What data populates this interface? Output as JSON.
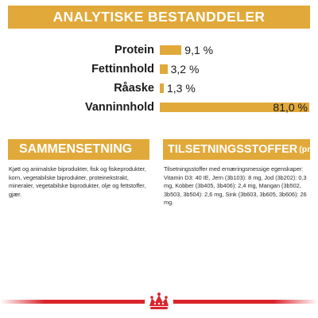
{
  "header": {
    "title": "ANALYTISKE BESTANDDELER"
  },
  "analytics": [
    {
      "label": "Protein",
      "value": "9,1 %",
      "percent": 9.1
    },
    {
      "label": "Fettinnhold",
      "value": "3,2 %",
      "percent": 3.2
    },
    {
      "label": "Råaske",
      "value": "1,3 %",
      "percent": 1.3
    },
    {
      "label": "Vanninnhold",
      "value": "81,0 %",
      "percent": 81.0
    }
  ],
  "composition": {
    "title": "SAMMENSETNING",
    "text": "Kjøtt og animalske biprodukter, fisk og fiskeprodukter, korn, vegetabilske biprodukter, proteinekstrakt, mineraler, vegetabilske biprodukter, olje og fettstoffer, gjær."
  },
  "additives": {
    "title": "TILSETNINGSSTOFFER",
    "subtitle": "(pr. kg)",
    "text": "Tilsetningsstoffer med ernæringsmessige egenskaper: Vitamin D3: 40 IE, Jern (3b103): 8 mg, Jod (3b202): 0,3 mg, Kobber (3b405, 3b406): 2,4 mg, Mangan (3b502, 3b503, 3b504): 2,6 mg, Sink (3b603, 3b605, 3b606): 26 mg."
  },
  "colors": {
    "accent": "#e1a93a",
    "ribbon": "#d9252c"
  },
  "icons": {
    "brand_logo": "royal-canin-crown-logo"
  }
}
